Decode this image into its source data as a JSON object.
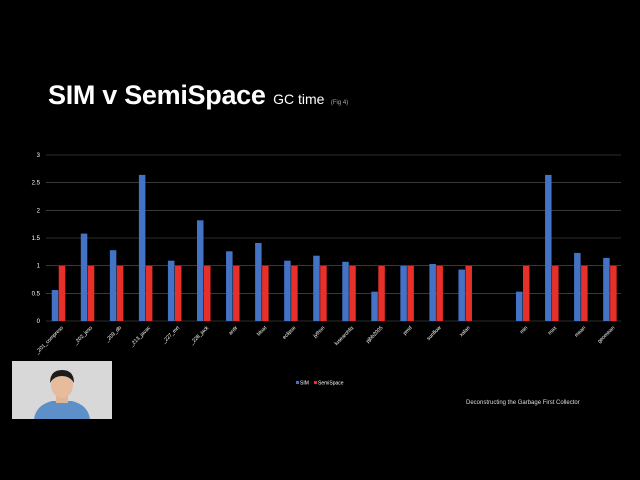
{
  "slide": {
    "title": "SIM v SemiSpace",
    "subtitle": "GC time",
    "figure_ref": "(Fig 4)",
    "footer": "Deconstructing the Garbage First Collector"
  },
  "colors": {
    "sim": "#4472C4",
    "semispace": "#E8302A",
    "grid": "#5a5a5a"
  },
  "chart_data": {
    "type": "bar",
    "title": "",
    "xlabel": "",
    "ylabel": "",
    "ylim": [
      0,
      3
    ],
    "yticks": [
      0,
      0.5,
      1,
      1.5,
      2,
      2.5,
      3
    ],
    "ytick_labels": [
      "0",
      "0.5",
      "1",
      "1.5",
      "2",
      "2.5",
      "3"
    ],
    "grid": true,
    "legend": "bottom-center",
    "categories": [
      "_201_compress",
      "_202_jess",
      "_209_db",
      "_213_javac",
      "_227_mrt",
      "_228_jack",
      "antlr",
      "bloat",
      "eclipse",
      "jython",
      "lusearchfix",
      "pjbb2005",
      "pmd",
      "sunflow",
      "xalan",
      "min",
      "max",
      "mean",
      "geomean"
    ],
    "series": [
      {
        "name": "SIM",
        "values": [
          0.56,
          1.58,
          1.28,
          2.64,
          1.09,
          1.82,
          1.26,
          1.41,
          1.09,
          1.18,
          1.07,
          0.53,
          1.0,
          1.03,
          0.93,
          0.53,
          2.64,
          1.23,
          1.14
        ]
      },
      {
        "name": "SemiSpace",
        "values": [
          1,
          1,
          1,
          1,
          1,
          1,
          1,
          1,
          1,
          1,
          1,
          1,
          1,
          1,
          1,
          1,
          1,
          1,
          1
        ]
      }
    ]
  }
}
